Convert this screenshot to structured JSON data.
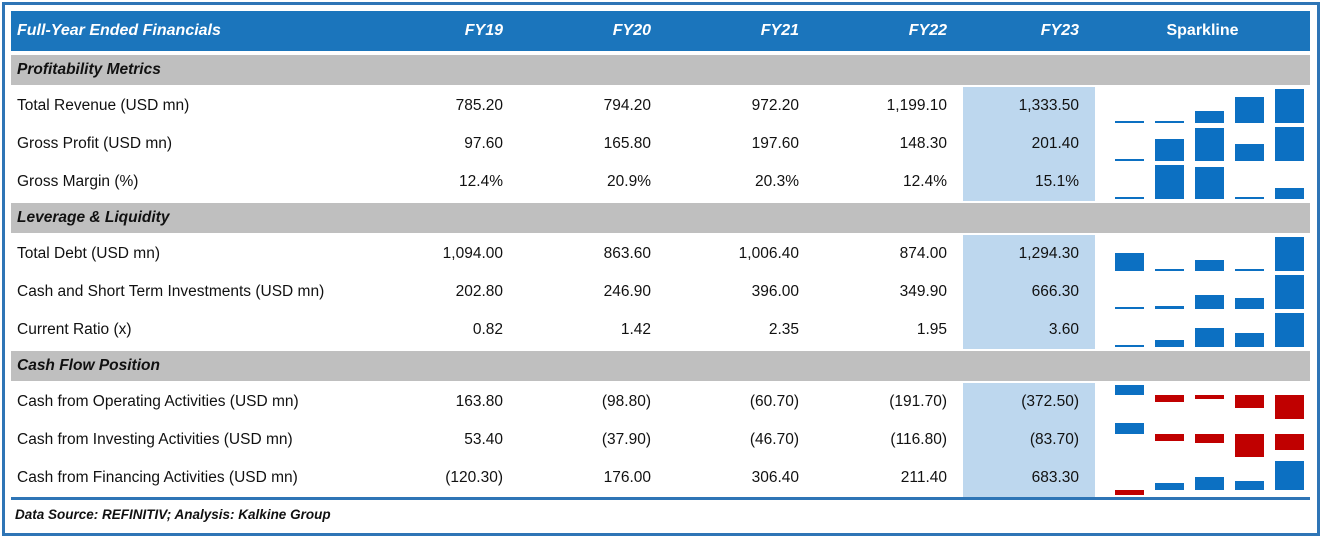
{
  "table": {
    "title": "Full-Year Ended Financials",
    "year_headers": [
      "FY19",
      "FY20",
      "FY21",
      "FY22",
      "FY23"
    ],
    "sparkline_header": "Sparkline",
    "sections": [
      {
        "label": "Profitability Metrics",
        "rows": [
          {
            "label": "Total Revenue (USD mn)",
            "cells": [
              "785.20",
              "794.20",
              "972.20",
              "1,199.10",
              "1,333.50"
            ]
          },
          {
            "label": "Gross Profit (USD mn)",
            "cells": [
              "97.60",
              "165.80",
              "197.60",
              "148.30",
              "201.40"
            ]
          },
          {
            "label": "Gross Margin (%)",
            "cells": [
              "12.4%",
              "20.9%",
              "20.3%",
              "12.4%",
              "15.1%"
            ]
          }
        ]
      },
      {
        "label": "Leverage & Liquidity",
        "rows": [
          {
            "label": "Total Debt (USD mn)",
            "cells": [
              "1,094.00",
              "863.60",
              "1,006.40",
              "874.00",
              "1,294.30"
            ]
          },
          {
            "label": "Cash and Short Term Investments (USD mn)",
            "cells": [
              "202.80",
              "246.90",
              "396.00",
              "349.90",
              "666.30"
            ]
          },
          {
            "label": "Current Ratio (x)",
            "cells": [
              "0.82",
              "1.42",
              "2.35",
              "1.95",
              "3.60"
            ]
          }
        ]
      },
      {
        "label": "Cash Flow Position",
        "rows": [
          {
            "label": "Cash from Operating Activities (USD mn)",
            "cells": [
              "163.80",
              "(98.80)",
              "(60.70)",
              "(191.70)",
              "(372.50)"
            ]
          },
          {
            "label": "Cash from Investing Activities (USD mn)",
            "cells": [
              "53.40",
              "(37.90)",
              "(46.70)",
              "(116.80)",
              "(83.70)"
            ]
          },
          {
            "label": "Cash from Financing Activities (USD mn)",
            "cells": [
              "(120.30)",
              "176.00",
              "306.40",
              "211.40",
              "683.30"
            ]
          }
        ]
      }
    ],
    "footer": "Data Source: REFINITIV; Analysis: Kalkine Group"
  },
  "colors": {
    "header_bg": "#1B75BC",
    "header_text": "#FFFFFF",
    "section_bg": "#BFBFBF",
    "fy23_highlight_bg": "#BDD7EE",
    "outer_border": "#2E75B6",
    "sparkline_positive": "#0C70C2",
    "sparkline_negative": "#C00000"
  },
  "chart_data": {
    "type": "table",
    "title": "Full-Year Ended Financials",
    "columns": [
      "FY19",
      "FY20",
      "FY21",
      "FY22",
      "FY23"
    ],
    "highlighted_column": "FY23",
    "sparkline": {
      "type": "bar",
      "positive_color": "#0C70C2",
      "negative_color": "#C00000",
      "scaling": "min-max per row, axis at zero when negatives present"
    },
    "sparkline_series": [
      {
        "label": "Total Revenue (USD mn)",
        "values": [
          785.2,
          794.2,
          972.2,
          1199.1,
          1333.5
        ]
      },
      {
        "label": "Gross Profit (USD mn)",
        "values": [
          97.6,
          165.8,
          197.6,
          148.3,
          201.4
        ]
      },
      {
        "label": "Gross Margin (%)",
        "values": [
          12.4,
          20.9,
          20.3,
          12.4,
          15.1
        ]
      },
      {
        "label": "Total Debt (USD mn)",
        "values": [
          1094.0,
          863.6,
          1006.4,
          874.0,
          1294.3
        ]
      },
      {
        "label": "Cash and Short Term Investments (USD mn)",
        "values": [
          202.8,
          246.9,
          396.0,
          349.9,
          666.3
        ]
      },
      {
        "label": "Current Ratio (x)",
        "values": [
          0.82,
          1.42,
          2.35,
          1.95,
          3.6
        ]
      },
      {
        "label": "Cash from Operating Activities (USD mn)",
        "values": [
          163.8,
          -98.8,
          -60.7,
          -191.7,
          -372.5
        ]
      },
      {
        "label": "Cash from Investing Activities (USD mn)",
        "values": [
          53.4,
          -37.9,
          -46.7,
          -116.8,
          -83.7
        ]
      },
      {
        "label": "Cash from Financing Activities (USD mn)",
        "values": [
          -120.3,
          176.0,
          306.4,
          211.4,
          683.3
        ]
      }
    ]
  }
}
